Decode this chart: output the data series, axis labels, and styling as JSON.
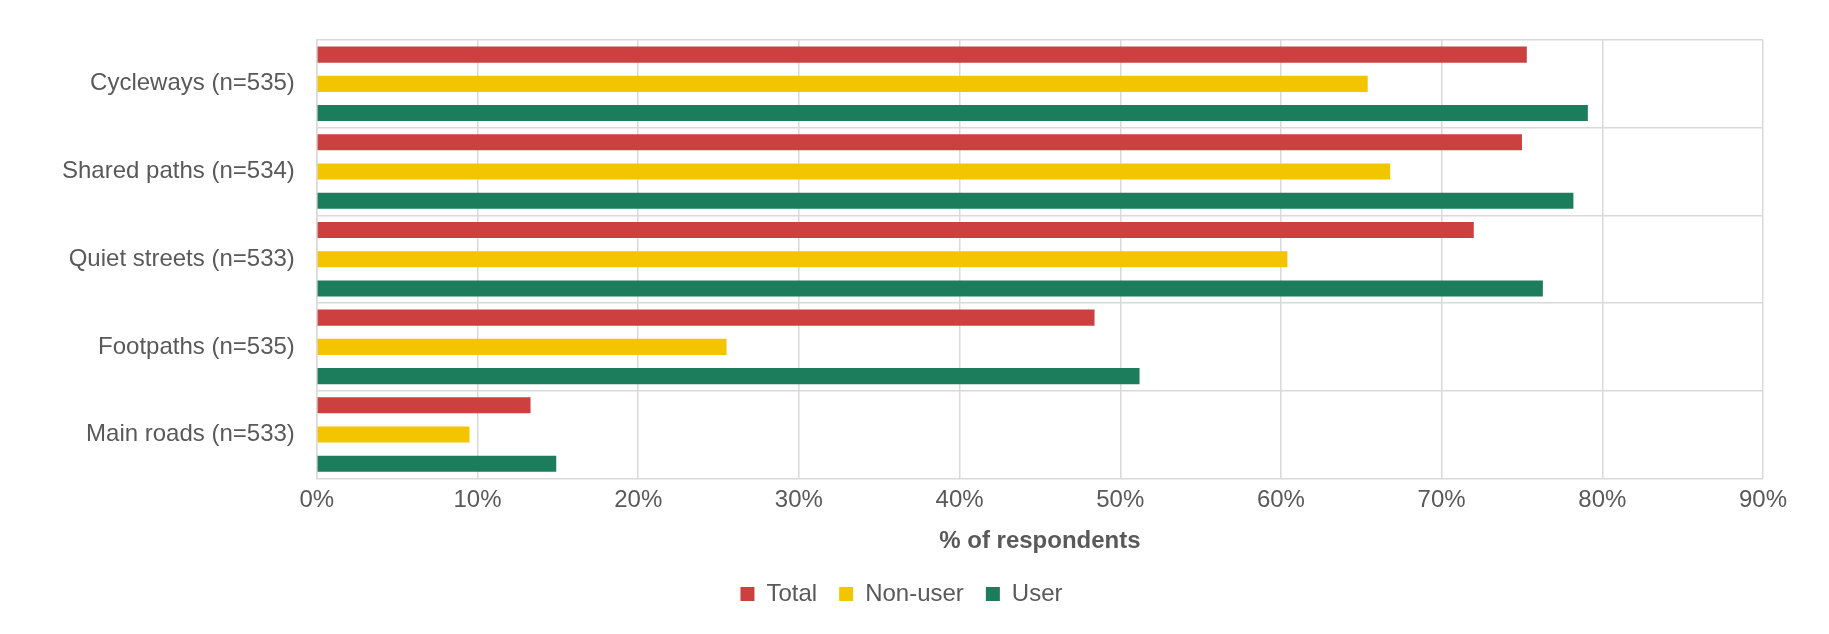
{
  "chart_data": {
    "type": "bar",
    "orientation": "horizontal",
    "xlabel": "% of respondents",
    "categories": [
      "Cycleways (n=535)",
      "Shared paths (n=534)",
      "Quiet streets (n=533)",
      "Footpaths (n=535)",
      "Main roads (n=533)"
    ],
    "series": [
      {
        "name": "Total",
        "color": "#cd4040",
        "values": [
          75.3,
          75.0,
          72.0,
          48.4,
          13.3
        ]
      },
      {
        "name": "Non-user",
        "color": "#f2c500",
        "values": [
          65.4,
          66.8,
          60.4,
          25.5,
          9.5
        ]
      },
      {
        "name": "User",
        "color": "#1b7d5c",
        "values": [
          79.1,
          78.2,
          76.3,
          51.2,
          14.9
        ]
      }
    ],
    "xlim": [
      0,
      90
    ],
    "xticks": [
      {
        "value": 0,
        "label": "0%"
      },
      {
        "value": 10,
        "label": "10%"
      },
      {
        "value": 20,
        "label": "20%"
      },
      {
        "value": 30,
        "label": "30%"
      },
      {
        "value": 40,
        "label": "40%"
      },
      {
        "value": 50,
        "label": "50%"
      },
      {
        "value": 60,
        "label": "60%"
      },
      {
        "value": 70,
        "label": "70%"
      },
      {
        "value": 80,
        "label": "80%"
      },
      {
        "value": 90,
        "label": "90%"
      }
    ],
    "grid": true,
    "legend": "bottom"
  }
}
